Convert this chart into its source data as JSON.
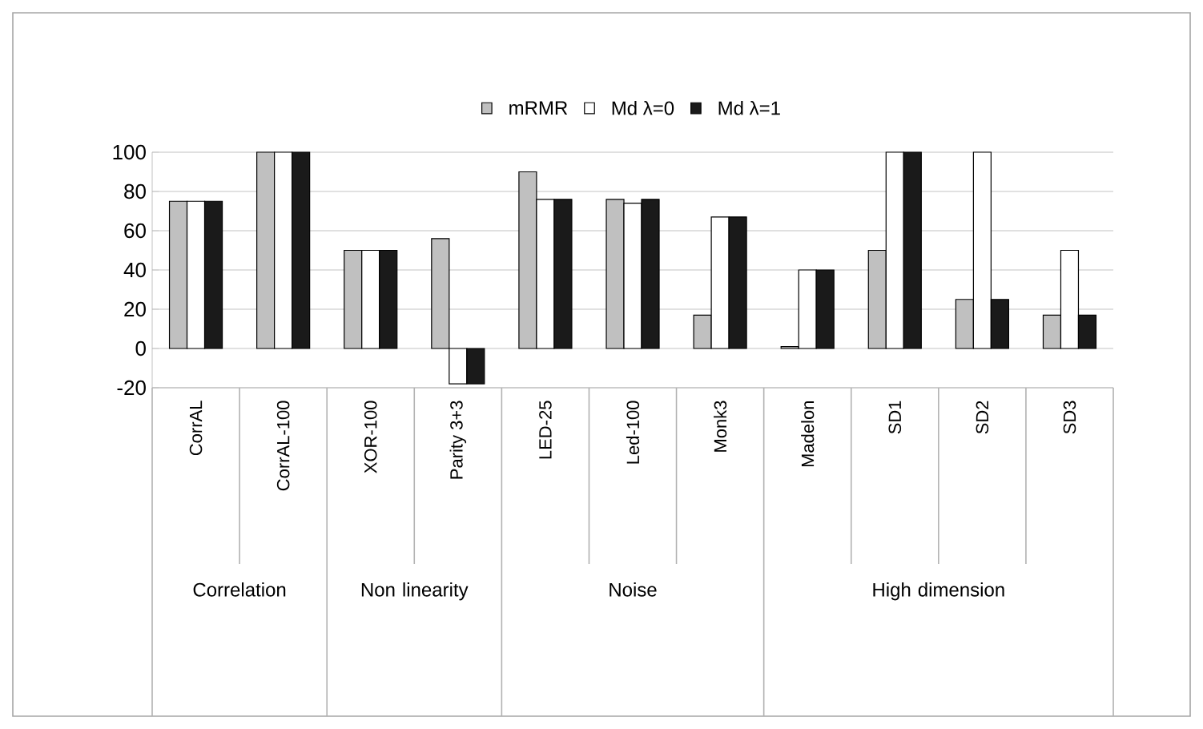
{
  "chart_data": {
    "type": "bar",
    "categories": [
      "CorrAL",
      "CorrAL-100",
      "XOR-100",
      "Parity 3+3",
      "LED-25",
      "Led-100",
      "Monk3",
      "Madelon",
      "SD1",
      "SD2",
      "SD3"
    ],
    "series": [
      {
        "name": "mRMR",
        "color": "#c0c0c0",
        "values": [
          75,
          100,
          50,
          56,
          90,
          76,
          17,
          1,
          50,
          25,
          17
        ]
      },
      {
        "name": "Md  λ=0",
        "color": "#ffffff",
        "values": [
          75,
          100,
          50,
          -18,
          76,
          74,
          67,
          40,
          100,
          100,
          50
        ]
      },
      {
        "name": "Md  λ=1",
        "color": "#1a1a1a",
        "values": [
          75,
          100,
          50,
          -18,
          76,
          76,
          67,
          40,
          100,
          25,
          17
        ]
      }
    ],
    "annotations": [
      "Correlation",
      "Non linearity",
      "Noise",
      "High dimension"
    ],
    "ylim": [
      -20,
      100
    ],
    "yticks": [
      -20,
      0,
      20,
      40,
      60,
      80,
      100
    ],
    "grid": "y",
    "legend": "top"
  }
}
